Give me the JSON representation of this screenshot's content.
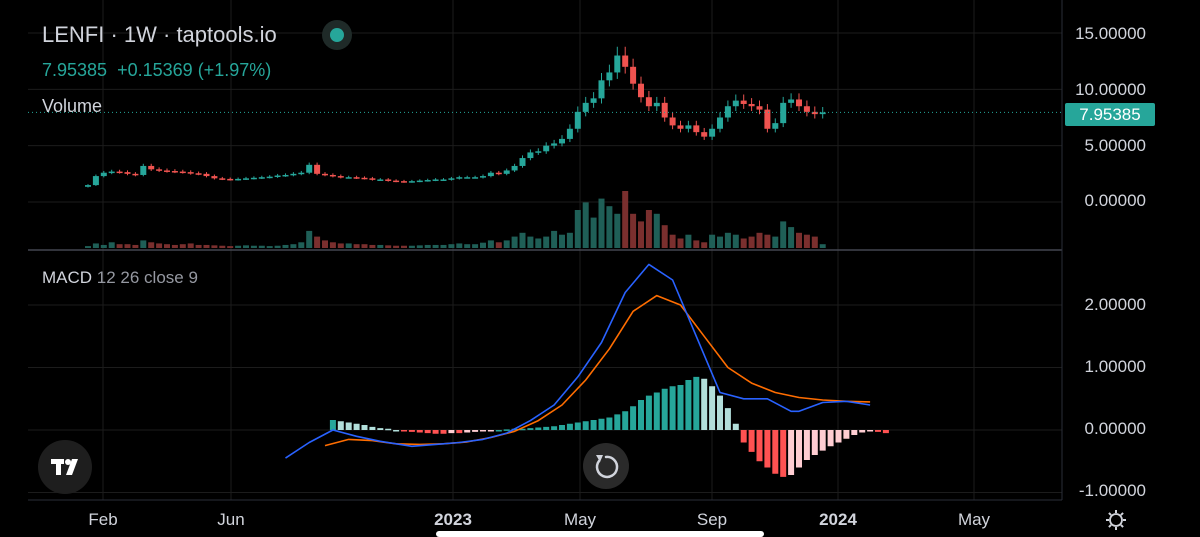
{
  "header": {
    "symbol": "LENFI",
    "interval": "1W",
    "source": "taptools.io",
    "title_line": "LENFI · 1W · taptools.io",
    "last_price": "7.95385",
    "change": "+0.15369",
    "change_pct": "(+1.97%)",
    "volume_label": "Volume"
  },
  "macd_legend": {
    "name": "MACD",
    "params": "12 26 close 9"
  },
  "price_tag": "7.95385",
  "colors": {
    "up": "#26a69a",
    "down": "#ef5350",
    "macd_line": "#2962ff",
    "signal_line": "#ff6d00",
    "hist_up_strong": "#26a69a",
    "hist_up_weak": "#b2dfdb",
    "hist_down_strong": "#ff5252",
    "hist_down_weak": "#ffcdd2"
  },
  "icons": {
    "logo": "tradingview-logo-icon",
    "reset": "reset-icon",
    "settings": "gear-icon",
    "status": "status-dot-icon"
  },
  "chart_data": [
    {
      "type": "candlestick",
      "title": "LENFI · 1W · taptools.io",
      "y_ticks": [
        "15.00000",
        "10.00000",
        "5.00000",
        "0.00000"
      ],
      "y_tick_values": [
        15,
        10,
        5,
        0
      ],
      "ylim": [
        -1.2,
        17.2
      ],
      "x_ticks": [
        "Feb",
        "Jun",
        "2023",
        "May",
        "Sep",
        "2024",
        "May"
      ],
      "last_value": 7.95385,
      "series": [
        {
          "name": "price_close",
          "values": [
            1.5,
            2.3,
            2.6,
            2.7,
            2.65,
            2.5,
            2.4,
            3.2,
            2.9,
            2.8,
            2.75,
            2.7,
            2.65,
            2.55,
            2.5,
            2.3,
            2.1,
            2.05,
            2.0,
            2.05,
            2.1,
            2.15,
            2.2,
            2.25,
            2.35,
            2.4,
            2.5,
            2.6,
            3.3,
            2.5,
            2.4,
            2.3,
            2.2,
            2.2,
            2.15,
            2.1,
            2.0,
            2.0,
            1.9,
            1.85,
            1.8,
            1.85,
            1.9,
            1.95,
            2.0,
            2.0,
            2.1,
            2.2,
            2.2,
            2.2,
            2.3,
            2.6,
            2.5,
            2.8,
            3.2,
            3.9,
            4.4,
            4.5,
            5.0,
            5.2,
            5.6,
            6.5,
            8.0,
            8.8,
            9.2,
            10.8,
            11.5,
            13.0,
            12.0,
            10.5,
            9.3,
            8.5,
            8.8,
            7.5,
            6.8,
            6.5,
            6.8,
            6.2,
            5.8,
            6.5,
            7.5,
            8.5,
            9.0,
            8.7,
            8.5,
            8.2,
            6.5,
            7.0,
            8.8,
            9.1,
            8.5,
            8.0,
            7.8,
            7.95385
          ]
        },
        {
          "name": "volume",
          "values": [
            0.05,
            0.12,
            0.08,
            0.15,
            0.1,
            0.1,
            0.08,
            0.2,
            0.15,
            0.12,
            0.1,
            0.08,
            0.1,
            0.12,
            0.08,
            0.08,
            0.07,
            0.06,
            0.05,
            0.06,
            0.07,
            0.06,
            0.06,
            0.05,
            0.06,
            0.08,
            0.1,
            0.15,
            0.45,
            0.3,
            0.2,
            0.15,
            0.12,
            0.12,
            0.1,
            0.1,
            0.08,
            0.08,
            0.07,
            0.06,
            0.06,
            0.06,
            0.07,
            0.08,
            0.08,
            0.08,
            0.1,
            0.12,
            0.1,
            0.1,
            0.14,
            0.2,
            0.15,
            0.2,
            0.3,
            0.4,
            0.3,
            0.25,
            0.3,
            0.45,
            0.35,
            0.4,
            1.0,
            1.2,
            0.8,
            1.3,
            1.1,
            0.9,
            1.5,
            0.9,
            0.7,
            1.0,
            0.9,
            0.6,
            0.35,
            0.25,
            0.35,
            0.2,
            0.15,
            0.35,
            0.3,
            0.4,
            0.35,
            0.25,
            0.3,
            0.4,
            0.35,
            0.3,
            0.7,
            0.55,
            0.4,
            0.35,
            0.3,
            0.1
          ]
        }
      ]
    },
    {
      "type": "line",
      "title": "MACD 12 26 close 9",
      "y_ticks": [
        "2.00000",
        "1.00000",
        "0.00000",
        "-1.00000"
      ],
      "y_tick_values": [
        2,
        1,
        0,
        -1
      ],
      "ylim": [
        -1.05,
        2.7
      ],
      "series": [
        {
          "name": "macd",
          "x": [
            25,
            28,
            31,
            34,
            37,
            41,
            44,
            47,
            50,
            53,
            56,
            59,
            62,
            65,
            68,
            71,
            74,
            77,
            80,
            83,
            86,
            89,
            90,
            93,
            96,
            99
          ],
          "values": [
            -0.45,
            -0.2,
            0.0,
            -0.1,
            -0.18,
            -0.26,
            -0.23,
            -0.2,
            -0.15,
            -0.05,
            0.15,
            0.4,
            0.85,
            1.4,
            2.2,
            2.65,
            2.4,
            1.5,
            0.6,
            0.5,
            0.5,
            0.3,
            0.3,
            0.44,
            0.46,
            0.4
          ]
        },
        {
          "name": "signal",
          "x": [
            30,
            33,
            36,
            39,
            42,
            45,
            48,
            51,
            54,
            57,
            60,
            63,
            66,
            69,
            72,
            75,
            78,
            81,
            84,
            87,
            90,
            93,
            96,
            99
          ],
          "values": [
            -0.25,
            -0.15,
            -0.17,
            -0.22,
            -0.23,
            -0.22,
            -0.19,
            -0.12,
            -0.02,
            0.15,
            0.4,
            0.8,
            1.3,
            1.9,
            2.15,
            2.0,
            1.5,
            1.0,
            0.75,
            0.6,
            0.52,
            0.48,
            0.46,
            0.45
          ]
        },
        {
          "name": "histogram",
          "values": [
            0.16,
            0.14,
            0.12,
            0.1,
            0.08,
            0.05,
            0.03,
            0.02,
            0.0,
            -0.02,
            -0.03,
            -0.04,
            -0.05,
            -0.06,
            -0.06,
            -0.05,
            -0.05,
            -0.04,
            -0.03,
            -0.02,
            -0.01,
            0.0,
            0.01,
            0.02,
            0.02,
            0.03,
            0.04,
            0.05,
            0.06,
            0.08,
            0.1,
            0.12,
            0.14,
            0.16,
            0.18,
            0.2,
            0.25,
            0.3,
            0.38,
            0.48,
            0.55,
            0.6,
            0.66,
            0.7,
            0.72,
            0.8,
            0.85,
            0.82,
            0.7,
            0.55,
            0.35,
            0.1,
            -0.2,
            -0.35,
            -0.5,
            -0.6,
            -0.7,
            -0.75,
            -0.72,
            -0.6,
            -0.48,
            -0.4,
            -0.33,
            -0.26,
            -0.2,
            -0.14,
            -0.08,
            -0.04,
            -0.02,
            -0.03,
            -0.05
          ]
        }
      ]
    }
  ]
}
